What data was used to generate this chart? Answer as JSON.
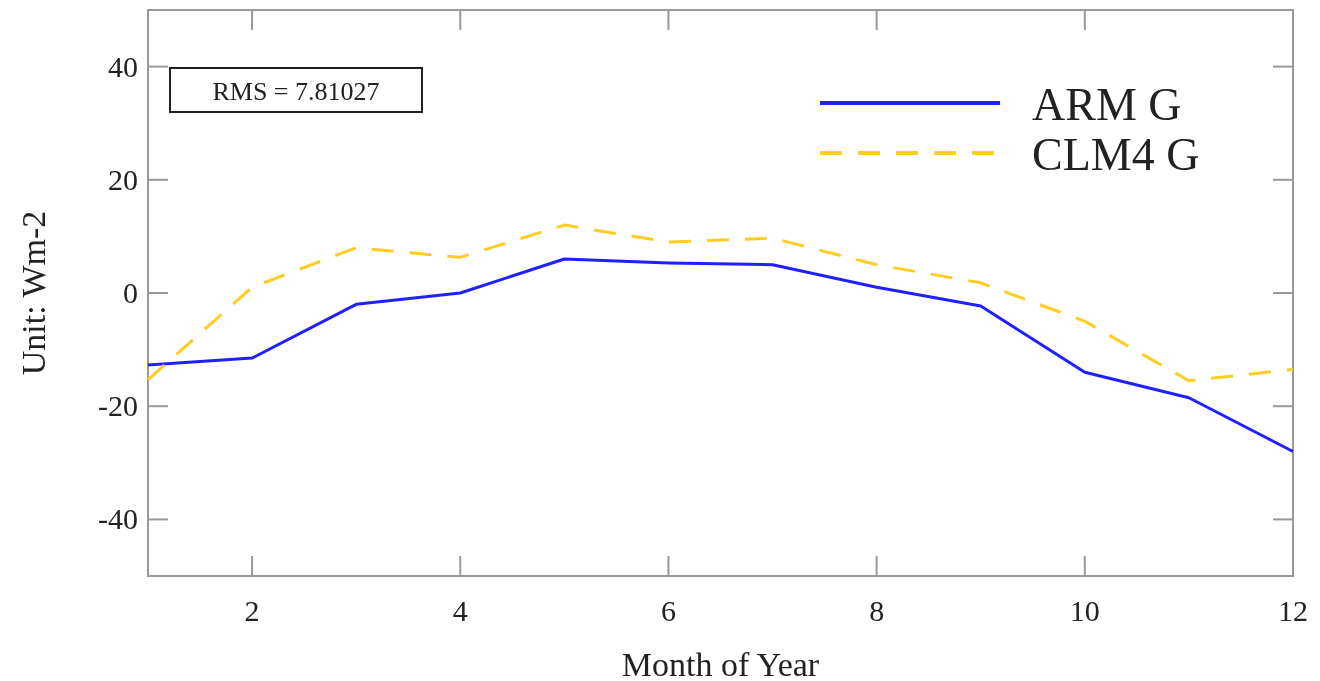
{
  "chart_data": {
    "type": "line",
    "xlabel": "Month of Year",
    "ylabel": "Unit: Wm-2",
    "x": [
      1,
      2,
      3,
      4,
      5,
      6,
      7,
      8,
      9,
      10,
      11,
      12
    ],
    "series": [
      {
        "name": "ARM G",
        "color": "#2020ff",
        "line_style": "solid",
        "values": [
          -12.7,
          -11.5,
          -2,
          0,
          6,
          5.3,
          5,
          1,
          -2.3,
          -14,
          -18.5,
          -28
        ]
      },
      {
        "name": "CLM4 G",
        "color": "#ffcc22",
        "line_style": "dashed",
        "values": [
          -15.3,
          1,
          8,
          6.3,
          12,
          9,
          9.7,
          5,
          1.8,
          -5,
          -15.5,
          -13.5
        ]
      }
    ],
    "xlim": [
      1,
      12
    ],
    "xticks": [
      2,
      4,
      6,
      8,
      10,
      12
    ],
    "ylim": [
      -50,
      50
    ],
    "yticks": [
      -40,
      -20,
      0,
      20,
      40
    ],
    "annotations": [
      "RMS = 7.81027"
    ],
    "legend": "top right",
    "grid": false,
    "marker": "none"
  }
}
